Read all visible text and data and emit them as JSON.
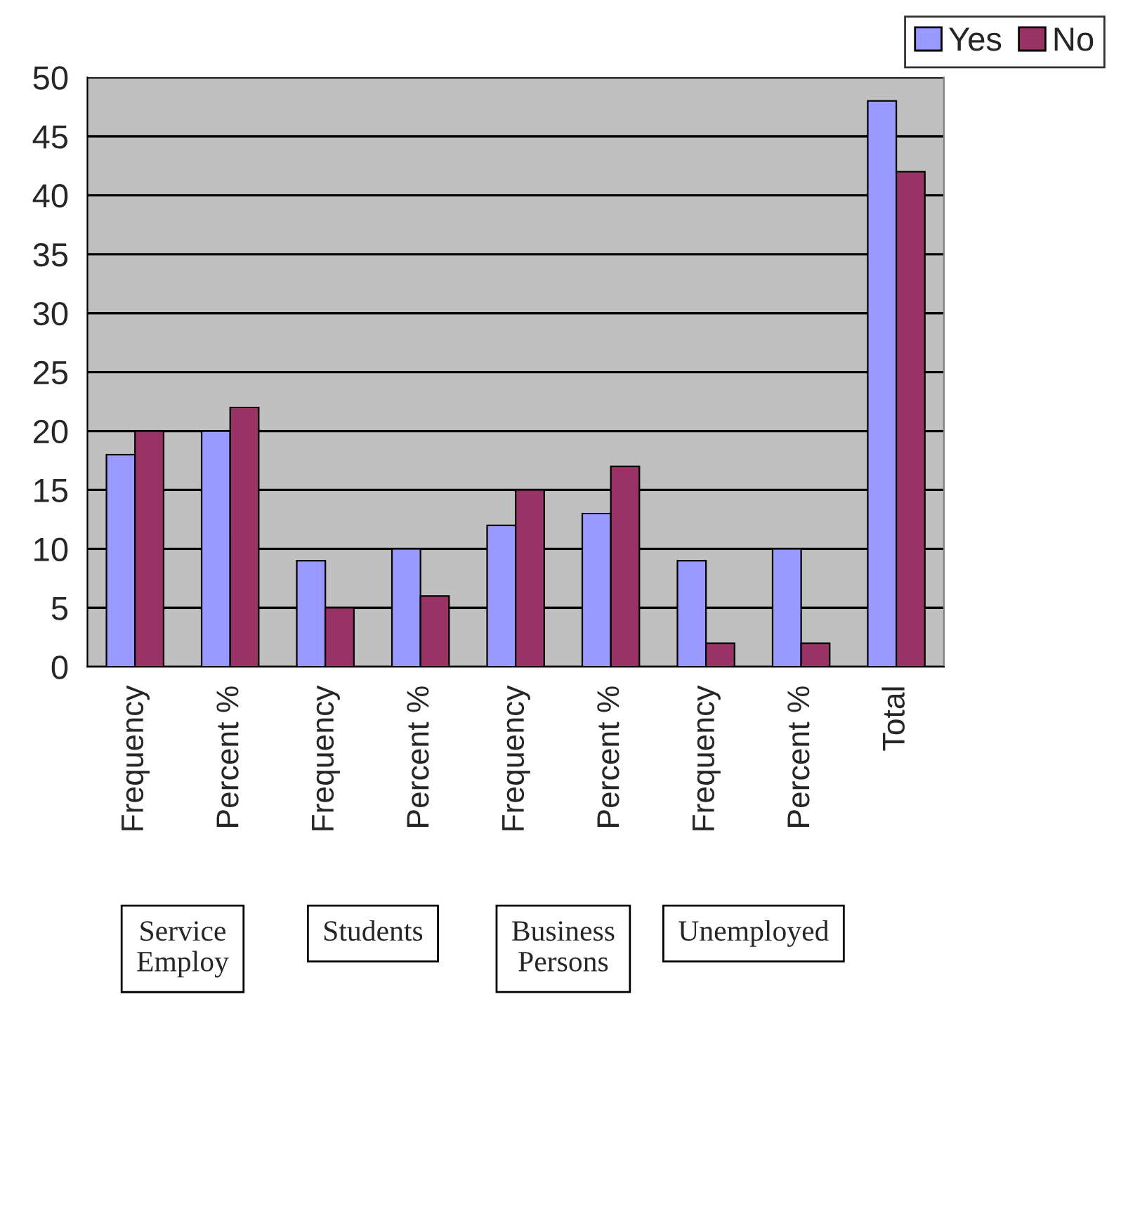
{
  "chart_data": {
    "type": "bar",
    "categories": [
      "Frequency",
      "Percent %",
      "Frequency",
      "Percent %",
      "Frequency",
      "Percent %",
      "Frequency",
      "Percent %",
      "Total"
    ],
    "series": [
      {
        "name": "Yes",
        "color": "#9999ff",
        "values": [
          18,
          20,
          9,
          10,
          12,
          13,
          9,
          10,
          48
        ]
      },
      {
        "name": "No",
        "color": "#993366",
        "values": [
          20,
          22,
          5,
          6,
          15,
          17,
          2,
          2,
          42
        ]
      }
    ],
    "ylim": [
      0,
      50
    ],
    "yticks": [
      0,
      5,
      10,
      15,
      20,
      25,
      30,
      35,
      40,
      45,
      50
    ],
    "grid": "y",
    "legend": "top right",
    "annotations": [
      "Service Employ",
      "Students",
      "Business Persons",
      "Unemployed"
    ]
  }
}
